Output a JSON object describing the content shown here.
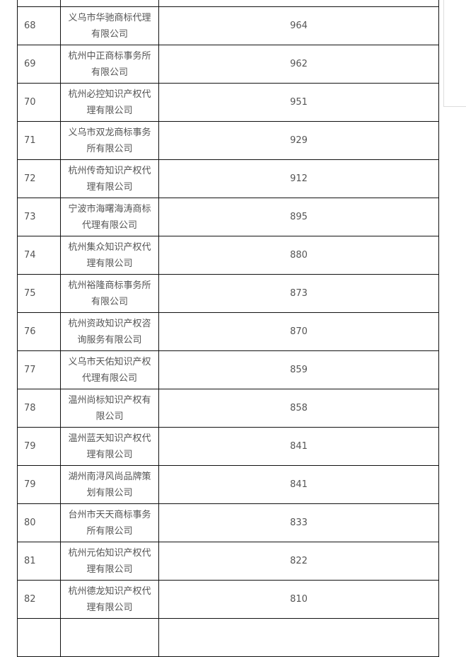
{
  "table": {
    "rows": [
      {
        "rank": "",
        "name": "",
        "count": ""
      },
      {
        "rank": "68",
        "name": "义乌市华驰商标代理有限公司",
        "count": "964"
      },
      {
        "rank": "69",
        "name": "杭州中正商标事务所有限公司",
        "count": "962"
      },
      {
        "rank": "70",
        "name": "杭州必控知识产权代理有限公司",
        "count": "951"
      },
      {
        "rank": "71",
        "name": "义乌市双龙商标事务所有限公司",
        "count": "929"
      },
      {
        "rank": "72",
        "name": "杭州传奇知识产权代理有限公司",
        "count": "912"
      },
      {
        "rank": "73",
        "name": "宁波市海曙海涛商标代理有限公司",
        "count": "895"
      },
      {
        "rank": "74",
        "name": "杭州集众知识产权代理有限公司",
        "count": "880"
      },
      {
        "rank": "75",
        "name": "杭州裕隆商标事务所有限公司",
        "count": "873"
      },
      {
        "rank": "76",
        "name": "杭州资政知识产权咨询服务有限公司",
        "count": "870"
      },
      {
        "rank": "77",
        "name": "义乌市天佑知识产权代理有限公司",
        "count": "859"
      },
      {
        "rank": "78",
        "name": "温州尚标知识产权有限公司",
        "count": "858"
      },
      {
        "rank": "79",
        "name": "温州蓝天知识产权代理有限公司",
        "count": "841"
      },
      {
        "rank": "79",
        "name": "湖州南浔风尚品牌策划有限公司",
        "count": "841"
      },
      {
        "rank": "80",
        "name": "台州市天天商标事务所有限公司",
        "count": "833"
      },
      {
        "rank": "81",
        "name": "杭州元佑知识产权代理有限公司",
        "count": "822"
      },
      {
        "rank": "82",
        "name": "杭州德龙知识产权代理有限公司",
        "count": "810"
      },
      {
        "rank": "",
        "name": "",
        "count": ""
      }
    ]
  }
}
